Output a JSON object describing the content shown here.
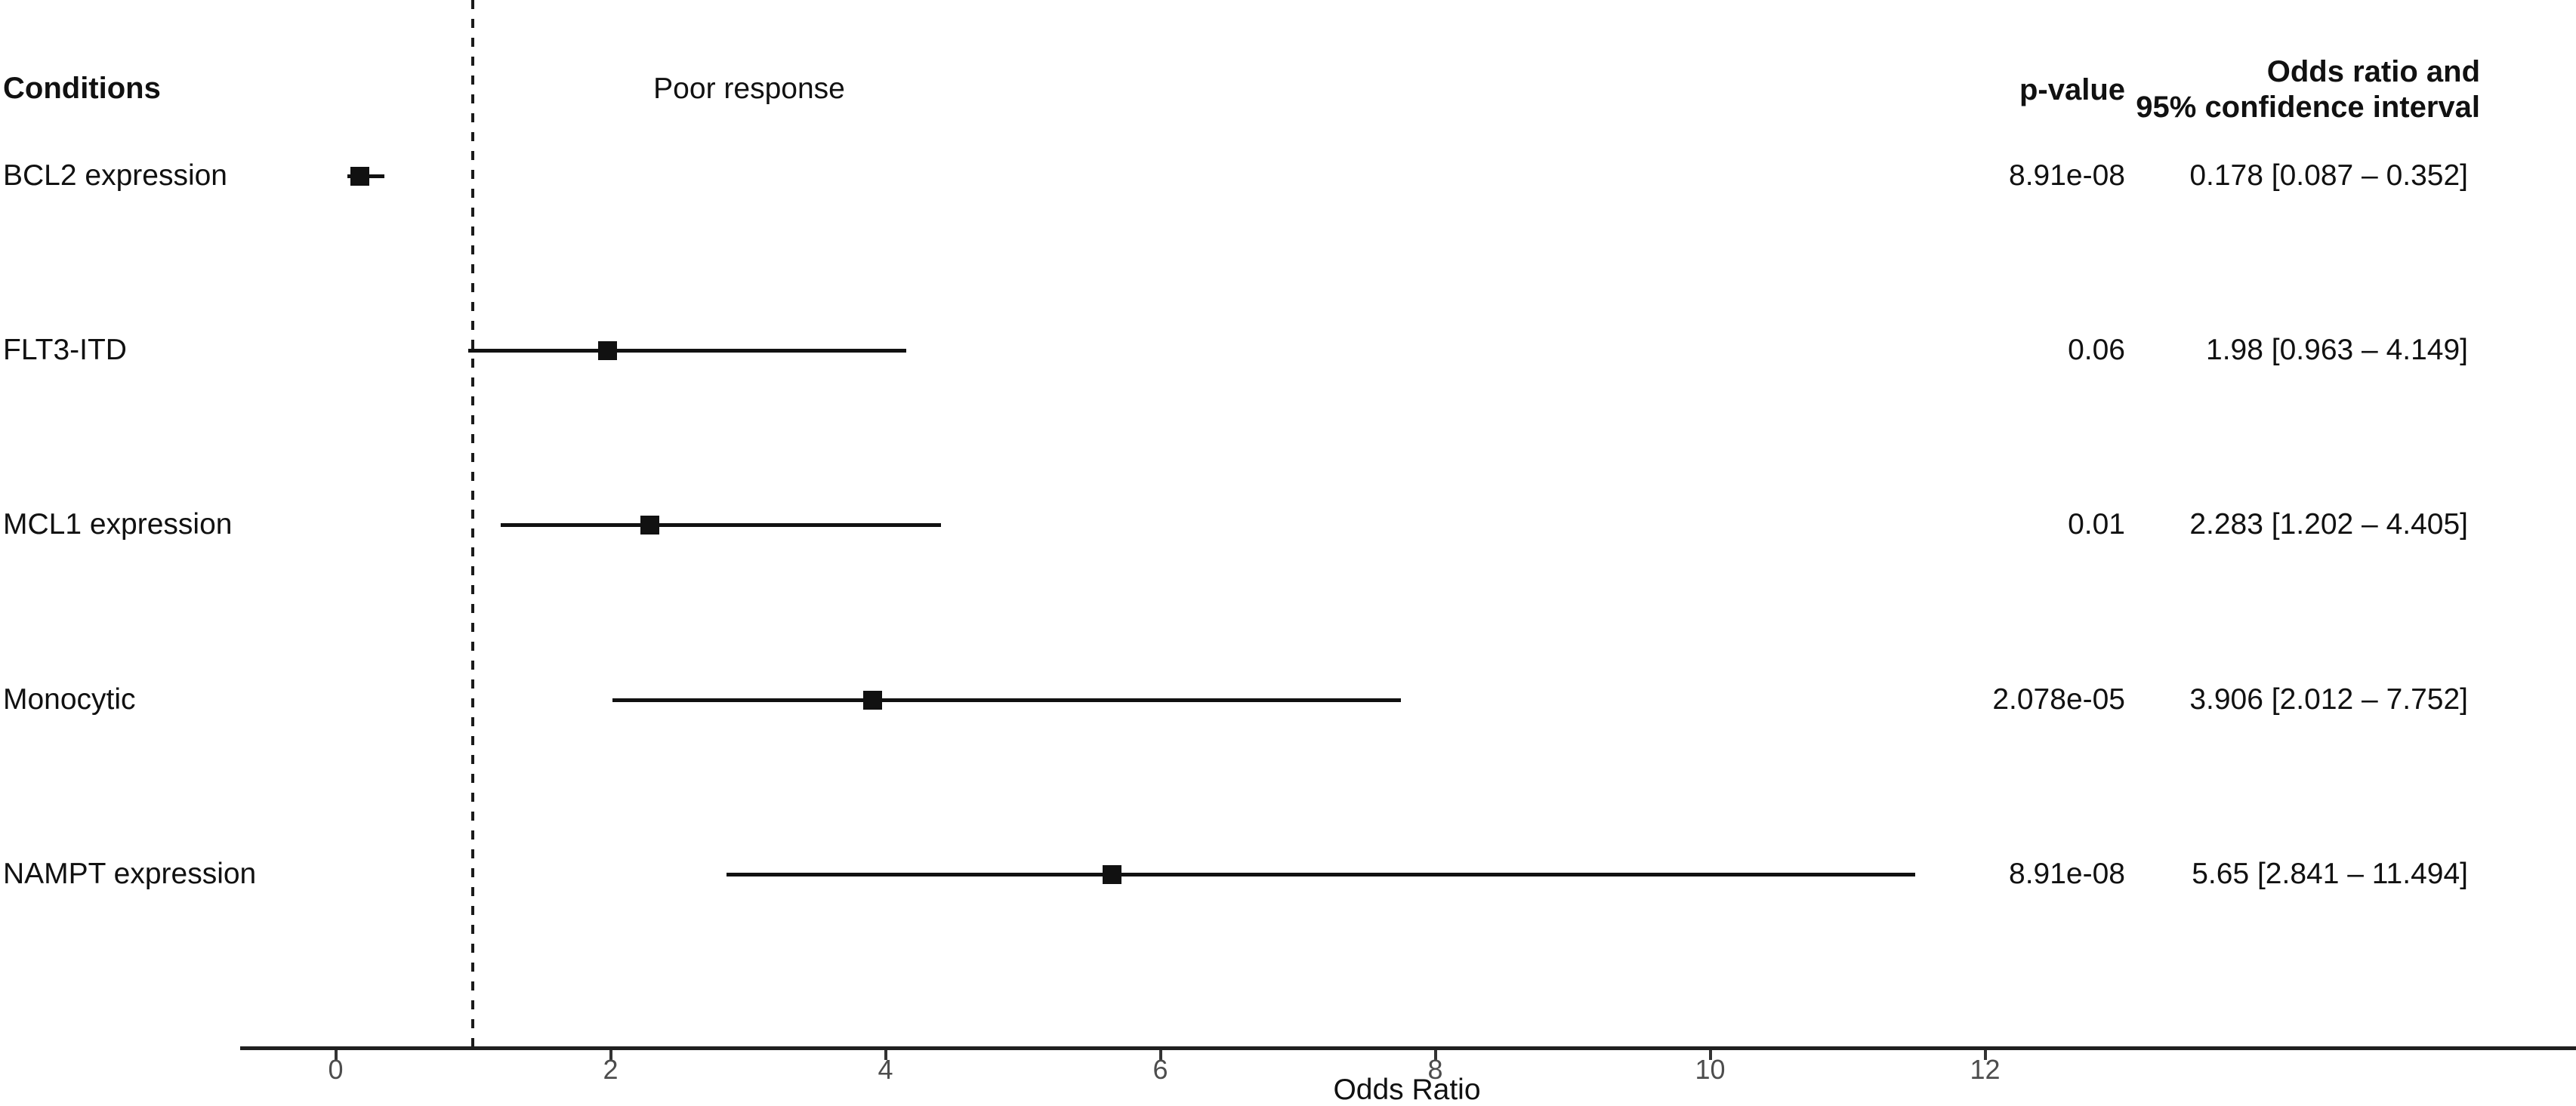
{
  "header": {
    "conditions_label": "Conditions",
    "response_label": "Poor response",
    "pvalue_label": "p-value",
    "or_label_line1": "Odds ratio and",
    "or_label_line2": "95% confidence interval"
  },
  "chart_data": {
    "type": "scatter",
    "subtype": "forest-plot",
    "title": "",
    "xlabel": "Odds Ratio",
    "ylabel": "",
    "x_ticks": [
      0,
      2,
      4,
      6,
      8,
      10,
      12
    ],
    "xlim": [
      -0.7,
      16.3
    ],
    "reference_line_x": 1,
    "grid": false,
    "rows": [
      {
        "condition": "BCL2 expression",
        "p_value": "8.91e-08",
        "odds_ratio": 0.178,
        "ci_low": 0.087,
        "ci_high": 0.352,
        "or_ci_text": "0.178 [0.087 – 0.352]"
      },
      {
        "condition": "FLT3-ITD",
        "p_value": "0.06",
        "odds_ratio": 1.98,
        "ci_low": 0.963,
        "ci_high": 4.149,
        "or_ci_text": "1.98 [0.963 – 4.149]"
      },
      {
        "condition": "MCL1 expression",
        "p_value": "0.01",
        "odds_ratio": 2.283,
        "ci_low": 1.202,
        "ci_high": 4.405,
        "or_ci_text": "2.283 [1.202 – 4.405]"
      },
      {
        "condition": "Monocytic",
        "p_value": "2.078e-05",
        "odds_ratio": 3.906,
        "ci_low": 2.012,
        "ci_high": 7.752,
        "or_ci_text": "3.906 [2.012 – 7.752]"
      },
      {
        "condition": "NAMPT expression",
        "p_value": "8.91e-08",
        "odds_ratio": 5.65,
        "ci_low": 2.841,
        "ci_high": 11.494,
        "or_ci_text": "5.65 [2.841 – 11.494]"
      }
    ]
  },
  "colors": {
    "background": "#ffffff",
    "text": "#111111",
    "tick_label": "#4d4d4d",
    "line": "#1a1a1a"
  }
}
